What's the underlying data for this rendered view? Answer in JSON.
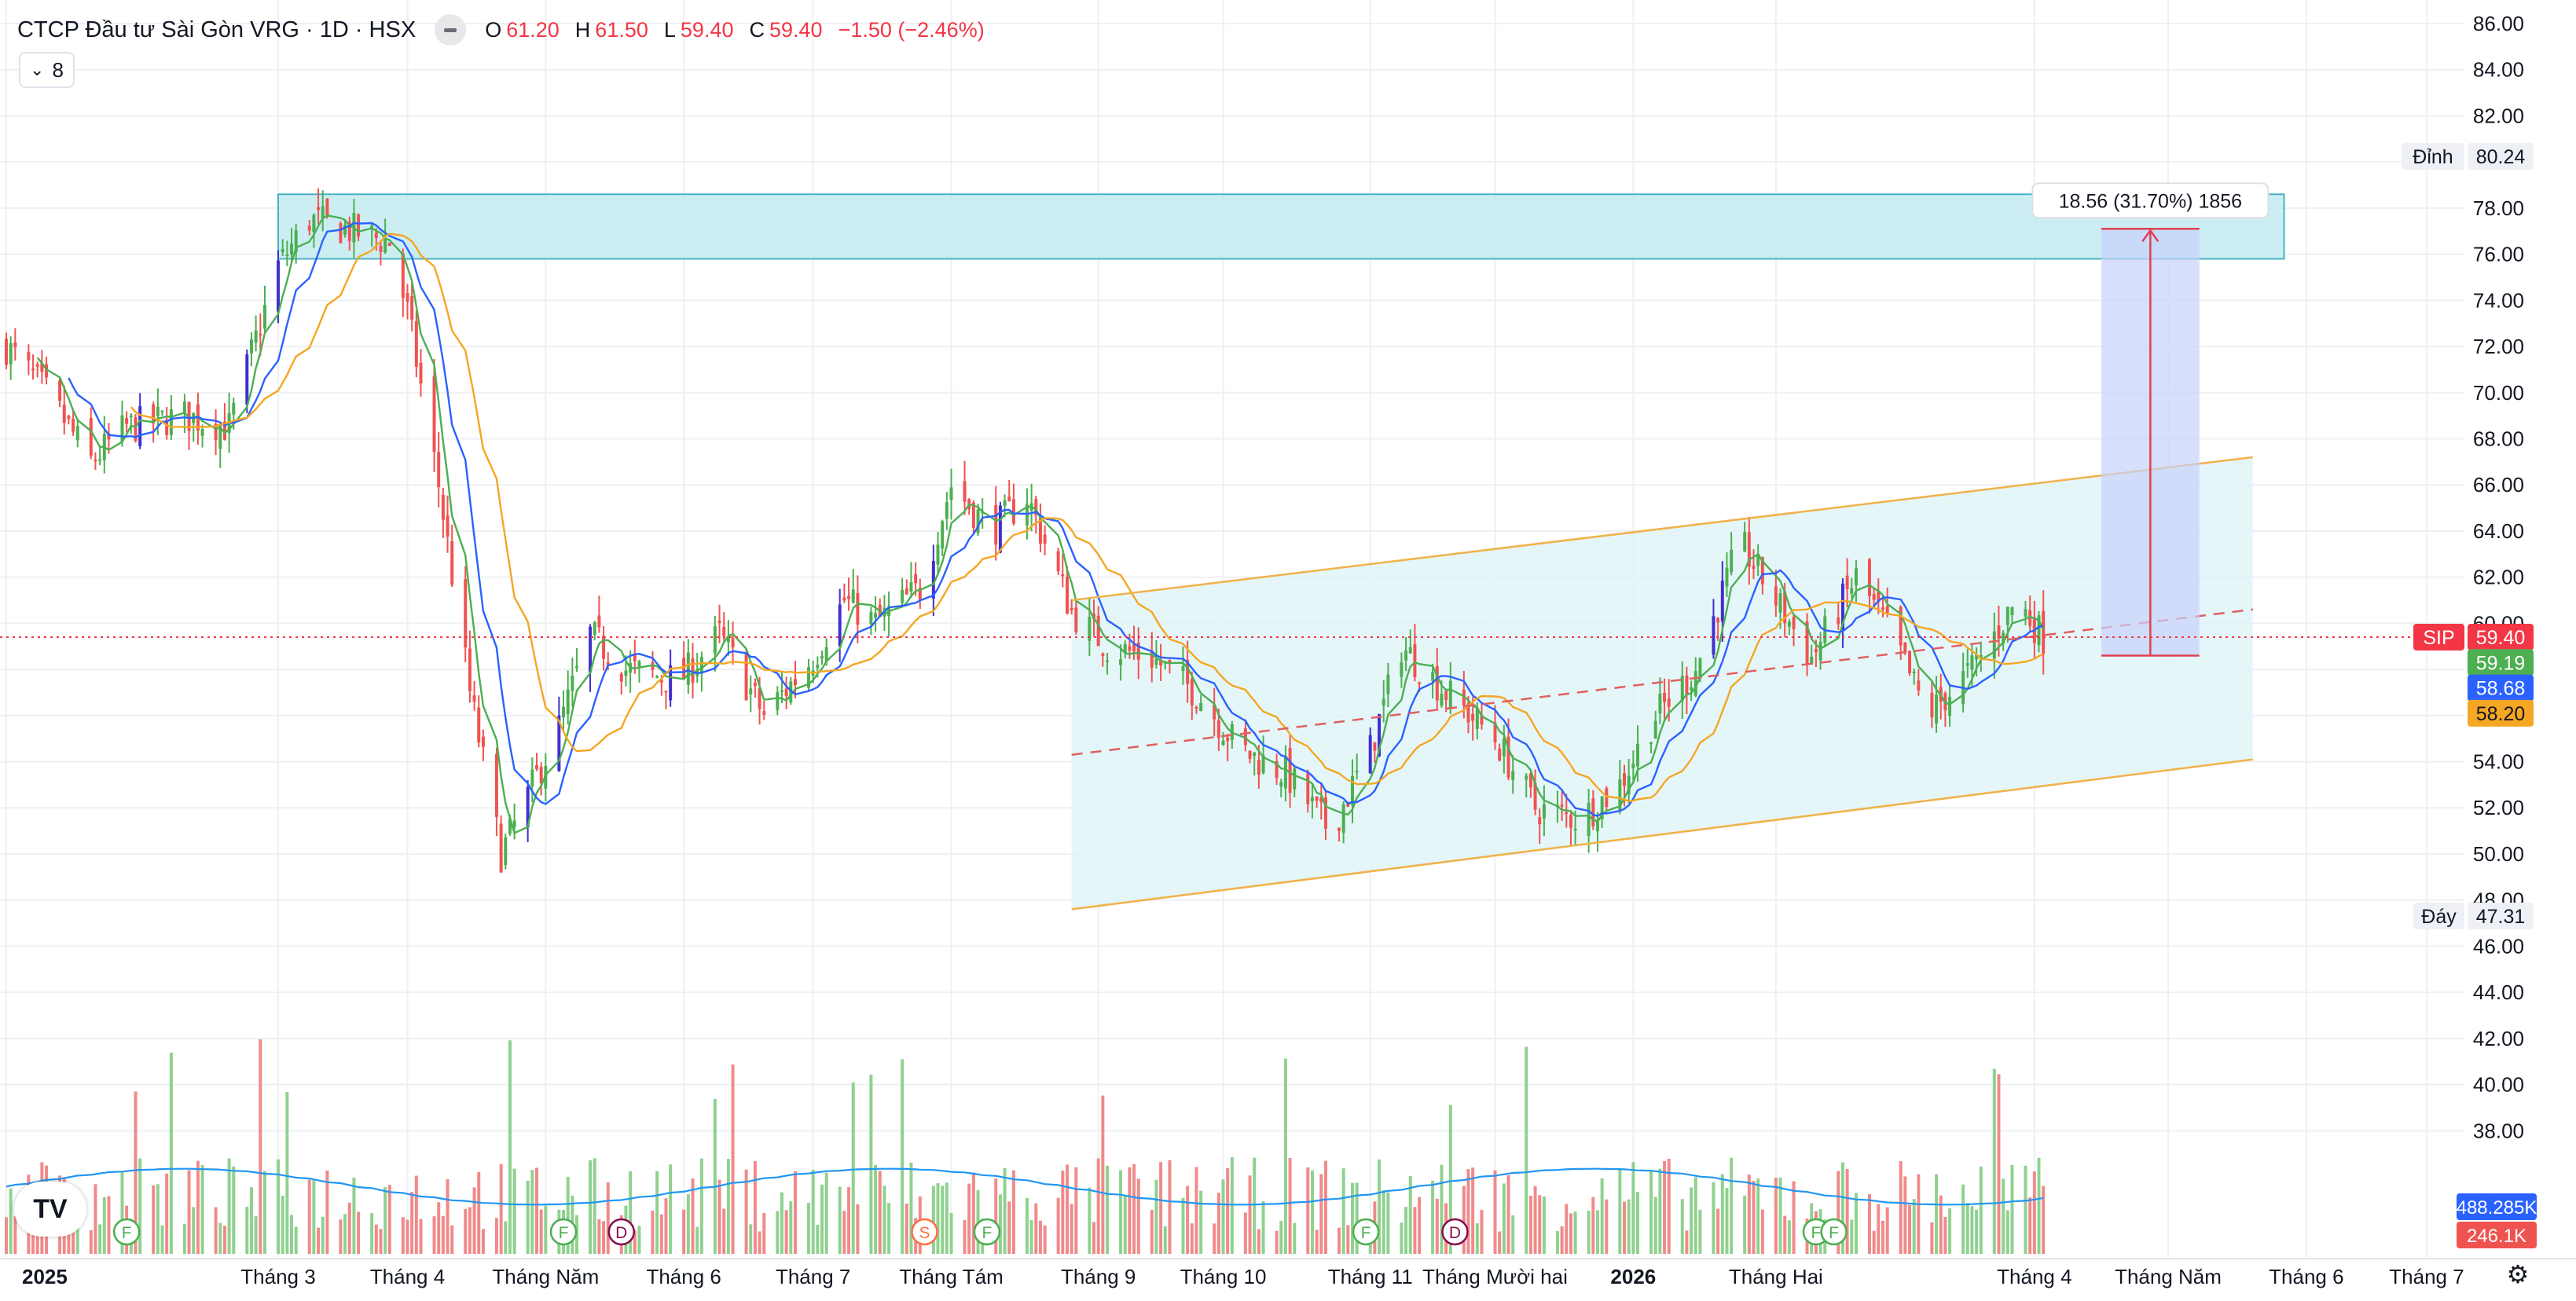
{
  "header": {
    "title": "CTCP Đầu tư Sài Gòn VRG · 1D · HSX",
    "ohlc": [
      {
        "k": "O",
        "v": "61.20"
      },
      {
        "k": "H",
        "v": "61.50"
      },
      {
        "k": "L",
        "v": "59.40"
      },
      {
        "k": "C",
        "v": "59.40"
      }
    ],
    "change": "−1.50 (−2.46%)",
    "indicators_count": "8"
  },
  "colors": {
    "up": "#4caf50",
    "down": "#ef5350",
    "strong": "#3f2fcf",
    "ma_fast": "#4caf50",
    "ma_mid": "#2962ff",
    "ma_slow": "#f5a623",
    "zone": "#b9e8ee",
    "grid": "#eef0f3"
  },
  "icons": {
    "logo": "tradingview-logo-icon",
    "settings": "gear-icon"
  },
  "chart_data": {
    "type": "candlestick",
    "symbol": "SIP",
    "y_axis": {
      "min": 36,
      "max": 86,
      "ticks": [
        "86.00",
        "84.00",
        "82.00",
        "80.00",
        "78.00",
        "76.00",
        "74.00",
        "72.00",
        "70.00",
        "68.00",
        "66.00",
        "64.00",
        "62.00",
        "60.00",
        "58.00",
        "56.00",
        "54.00",
        "52.00",
        "50.00",
        "48.00",
        "46.00",
        "44.00",
        "42.00",
        "40.00",
        "38.00"
      ]
    },
    "x_axis": {
      "start": "2025-01-01",
      "end": "2026-06-28",
      "labels": [
        {
          "date": "2025-01-01",
          "text": "2025",
          "bold": true
        },
        {
          "date": "2025-03-03",
          "text": "Tháng 3"
        },
        {
          "date": "2025-04-01",
          "text": "Tháng 4"
        },
        {
          "date": "2025-05-02",
          "text": "Tháng Năm"
        },
        {
          "date": "2025-06-02",
          "text": "Tháng 6"
        },
        {
          "date": "2025-07-01",
          "text": "Tháng 7"
        },
        {
          "date": "2025-08-01",
          "text": "Tháng Tám"
        },
        {
          "date": "2025-09-03",
          "text": "Tháng 9"
        },
        {
          "date": "2025-10-01",
          "text": "Tháng 10"
        },
        {
          "date": "2025-11-03",
          "text": "Tháng 11"
        },
        {
          "date": "2025-12-01",
          "text": "Tháng Mười hai"
        },
        {
          "date": "2026-01-01",
          "text": "2026",
          "bold": true
        },
        {
          "date": "2026-02-02",
          "text": "Tháng Hai"
        },
        {
          "date": "2026-04-01",
          "text": "Tháng 4"
        },
        {
          "date": "2026-05-01",
          "text": "Tháng Năm"
        },
        {
          "date": "2026-06-01",
          "text": "Tháng 6"
        },
        {
          "date": "2026-06-28",
          "text": "Tháng 7"
        }
      ]
    },
    "price_path": [
      {
        "date": "2025-01-01",
        "close": 72.0
      },
      {
        "date": "2025-01-10",
        "close": 70.0
      },
      {
        "date": "2025-01-20",
        "close": 67.0
      },
      {
        "date": "2025-01-28",
        "close": 68.5
      },
      {
        "date": "2025-02-10",
        "close": 69.0
      },
      {
        "date": "2025-02-20",
        "close": 68.5
      },
      {
        "date": "2025-03-03",
        "close": 75.5
      },
      {
        "date": "2025-03-10",
        "close": 77.5
      },
      {
        "date": "2025-03-20",
        "close": 77.0
      },
      {
        "date": "2025-03-28",
        "close": 76.5
      },
      {
        "date": "2025-04-01",
        "close": 73.5
      },
      {
        "date": "2025-04-08",
        "close": 66.0
      },
      {
        "date": "2025-04-15",
        "close": 57.0
      },
      {
        "date": "2025-04-22",
        "close": 50.0
      },
      {
        "date": "2025-04-28",
        "close": 52.5
      },
      {
        "date": "2025-05-05",
        "close": 55.5
      },
      {
        "date": "2025-05-12",
        "close": 59.5
      },
      {
        "date": "2025-05-20",
        "close": 58.0
      },
      {
        "date": "2025-06-01",
        "close": 57.5
      },
      {
        "date": "2025-06-10",
        "close": 59.5
      },
      {
        "date": "2025-06-20",
        "close": 56.0
      },
      {
        "date": "2025-07-01",
        "close": 58.5
      },
      {
        "date": "2025-07-08",
        "close": 61.0
      },
      {
        "date": "2025-07-15",
        "close": 60.0
      },
      {
        "date": "2025-07-25",
        "close": 61.5
      },
      {
        "date": "2025-08-01",
        "close": 66.0
      },
      {
        "date": "2025-08-10",
        "close": 64.0
      },
      {
        "date": "2025-08-18",
        "close": 65.5
      },
      {
        "date": "2025-08-28",
        "close": 60.5
      },
      {
        "date": "2025-09-05",
        "close": 59.0
      },
      {
        "date": "2025-09-15",
        "close": 58.5
      },
      {
        "date": "2025-09-25",
        "close": 57.0
      },
      {
        "date": "2025-10-05",
        "close": 54.5
      },
      {
        "date": "2025-10-15",
        "close": 53.5
      },
      {
        "date": "2025-10-25",
        "close": 51.0
      },
      {
        "date": "2025-11-03",
        "close": 54.5
      },
      {
        "date": "2025-11-10",
        "close": 59.0
      },
      {
        "date": "2025-11-20",
        "close": 57.0
      },
      {
        "date": "2025-12-01",
        "close": 55.0
      },
      {
        "date": "2025-12-10",
        "close": 52.0
      },
      {
        "date": "2025-12-20",
        "close": 51.5
      },
      {
        "date": "2025-12-29",
        "close": 53.0
      },
      {
        "date": "2026-01-06",
        "close": 56.0
      },
      {
        "date": "2026-01-15",
        "close": 58.0
      },
      {
        "date": "2026-01-25",
        "close": 63.5
      },
      {
        "date": "2026-02-02",
        "close": 61.0
      },
      {
        "date": "2026-02-10",
        "close": 58.5
      },
      {
        "date": "2026-02-20",
        "close": 62.0
      },
      {
        "date": "2026-02-28",
        "close": 59.5
      },
      {
        "date": "2026-03-08",
        "close": 56.0
      },
      {
        "date": "2026-03-18",
        "close": 58.0
      },
      {
        "date": "2026-03-28",
        "close": 61.0
      },
      {
        "date": "2026-04-03",
        "close": 59.4
      }
    ],
    "moving_averages": [
      {
        "color": "#4caf50",
        "period": 5
      },
      {
        "color": "#2962ff",
        "period": 10
      },
      {
        "color": "#f5a623",
        "period": 20
      }
    ],
    "volume": {
      "labels": [
        "488.285K",
        "246.1K"
      ],
      "label_colors": [
        "#2962ff",
        "#ef5350"
      ]
    },
    "price_labels": [
      {
        "text": "Đỉnh",
        "value": "80.24",
        "price": 80.24,
        "style": "plain"
      },
      {
        "text": "Đáy",
        "value": "47.31",
        "price": 47.31,
        "style": "plain"
      },
      {
        "text": "SIP",
        "value": "59.40",
        "price": 59.4,
        "style": "red"
      },
      {
        "text": "",
        "value": "59.19",
        "price": 58.3,
        "style": "green"
      },
      {
        "text": "",
        "value": "58.68",
        "price": 57.2,
        "style": "blue"
      },
      {
        "text": "",
        "value": "58.20",
        "price": 56.1,
        "style": "orange"
      }
    ],
    "drawings": {
      "resistance_zone": {
        "x1": "2025-03-03",
        "x2": "2026-05-27",
        "y_top": 78.6,
        "y_bottom": 75.8
      },
      "channel": {
        "x1": "2025-08-28",
        "x2": "2026-05-20",
        "upper": [
          61.0,
          67.2
        ],
        "lower": [
          47.6,
          54.1
        ],
        "mid": [
          54.3,
          60.6
        ]
      },
      "measure": {
        "x1": "2026-04-16",
        "x2": "2026-05-08",
        "y1": 58.6,
        "y2": 77.1,
        "label": "18.56 (31.70%) 1856"
      }
    },
    "events": [
      {
        "date": "2025-01-28",
        "letter": "F",
        "kind": "dividend"
      },
      {
        "date": "2025-05-06",
        "letter": "F",
        "kind": "dividend"
      },
      {
        "date": "2025-05-19",
        "letter": "D",
        "kind": "split"
      },
      {
        "date": "2025-07-26",
        "letter": "S",
        "kind": "earnings"
      },
      {
        "date": "2025-08-09",
        "letter": "F",
        "kind": "dividend"
      },
      {
        "date": "2025-11-02",
        "letter": "F",
        "kind": "dividend"
      },
      {
        "date": "2025-11-22",
        "letter": "D",
        "kind": "split"
      },
      {
        "date": "2026-02-11",
        "letter": "F",
        "kind": "dividend"
      },
      {
        "date": "2026-02-15",
        "letter": "F",
        "kind": "dividend"
      }
    ]
  }
}
